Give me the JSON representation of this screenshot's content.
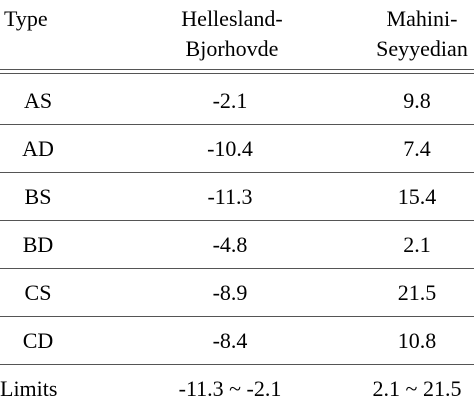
{
  "table": {
    "headers": {
      "type": "Type",
      "hb_line1": "Hellesland-",
      "hb_line2": "Bjorhovde",
      "ms_line1": "Mahini-",
      "ms_line2": "Seyyedian"
    },
    "rows": [
      {
        "type": "AS",
        "hb": "-2.1",
        "ms": "9.8"
      },
      {
        "type": "AD",
        "hb": "-10.4",
        "ms": "7.4"
      },
      {
        "type": "BS",
        "hb": "-11.3",
        "ms": "15.4"
      },
      {
        "type": "BD",
        "hb": "-4.8",
        "ms": "2.1"
      },
      {
        "type": "CS",
        "hb": "-8.9",
        "ms": "21.5"
      },
      {
        "type": "CD",
        "hb": "-8.4",
        "ms": "10.8"
      }
    ],
    "limits": {
      "type": "Limits",
      "hb": "-11.3 ~ -2.1",
      "ms": "2.1 ~ 21.5"
    }
  }
}
